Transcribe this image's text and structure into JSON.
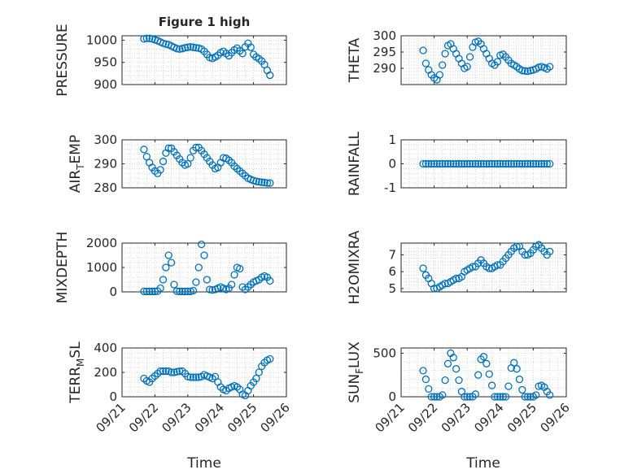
{
  "figure": {
    "title": "Figure 1 high",
    "xlabel": "Time",
    "x_ticks": [
      "09/21",
      "09/22",
      "09/23",
      "09/24",
      "09/25",
      "09/26"
    ],
    "marker_color": "#0072BD"
  },
  "chart_data": [
    {
      "type": "scatter",
      "name": "PRESSURE",
      "ylabel_main": "PRESSURE",
      "ylabel_sub": "",
      "ylabel_tail": "",
      "title": "Figure 1 high",
      "ylim": [
        900,
        1010
      ],
      "y_ticks": [
        900,
        950,
        1000
      ],
      "xlim": [
        "09/21",
        "09/26"
      ],
      "grid": "minor",
      "x": [
        "09/21 16:00",
        "09/21 18:00",
        "09/21 20:00",
        "09/21 22:00",
        "09/22 00:00",
        "09/22 02:00",
        "09/22 04:00",
        "09/22 06:00",
        "09/22 08:00",
        "09/22 10:00",
        "09/22 12:00",
        "09/22 14:00",
        "09/22 16:00",
        "09/22 18:00",
        "09/22 20:00",
        "09/22 22:00",
        "09/23 00:00",
        "09/23 02:00",
        "09/23 04:00",
        "09/23 06:00",
        "09/23 08:00",
        "09/23 10:00",
        "09/23 12:00",
        "09/23 14:00",
        "09/23 16:00",
        "09/23 18:00",
        "09/23 20:00",
        "09/23 22:00",
        "09/24 00:00",
        "09/24 02:00",
        "09/24 04:00",
        "09/24 06:00",
        "09/24 08:00",
        "09/24 10:00",
        "09/24 12:00",
        "09/24 14:00",
        "09/24 16:00",
        "09/24 18:00",
        "09/24 20:00",
        "09/24 22:00",
        "09/25 00:00",
        "09/25 02:00",
        "09/25 04:00",
        "09/25 06:00",
        "09/25 08:00",
        "09/25 10:00",
        "09/25 12:00"
      ],
      "y": [
        1003,
        1004,
        1004,
        1003,
        1001,
        999,
        996,
        993,
        991,
        990,
        987,
        984,
        981,
        980,
        981,
        983,
        984,
        985,
        984,
        983,
        982,
        980,
        975,
        968,
        961,
        959,
        962,
        966,
        972,
        975,
        970,
        965,
        972,
        978,
        982,
        976,
        970,
        985,
        993,
        984,
        968,
        962,
        958,
        953,
        945,
        932,
        921
      ]
    },
    {
      "type": "scatter",
      "name": "THETA",
      "ylabel_main": "THETA",
      "ylabel_sub": "",
      "ylabel_tail": "",
      "ylim": [
        285,
        300
      ],
      "y_ticks": [
        290,
        295,
        300
      ],
      "xlim": [
        "09/21",
        "09/26"
      ],
      "grid": "minor",
      "x": [
        "09/21 16:00",
        "09/21 18:00",
        "09/21 20:00",
        "09/21 22:00",
        "09/22 00:00",
        "09/22 02:00",
        "09/22 04:00",
        "09/22 06:00",
        "09/22 08:00",
        "09/22 10:00",
        "09/22 12:00",
        "09/22 14:00",
        "09/22 16:00",
        "09/22 18:00",
        "09/22 20:00",
        "09/22 22:00",
        "09/23 00:00",
        "09/23 02:00",
        "09/23 04:00",
        "09/23 06:00",
        "09/23 08:00",
        "09/23 10:00",
        "09/23 12:00",
        "09/23 14:00",
        "09/23 16:00",
        "09/23 18:00",
        "09/23 20:00",
        "09/23 22:00",
        "09/24 00:00",
        "09/24 02:00",
        "09/24 04:00",
        "09/24 06:00",
        "09/24 08:00",
        "09/24 10:00",
        "09/24 12:00",
        "09/24 14:00",
        "09/24 16:00",
        "09/24 18:00",
        "09/24 20:00",
        "09/24 22:00",
        "09/25 00:00",
        "09/25 02:00",
        "09/25 04:00",
        "09/25 06:00",
        "09/25 08:00",
        "09/25 10:00",
        "09/25 12:00"
      ],
      "y": [
        295.5,
        291.5,
        289.5,
        288,
        287,
        286.5,
        288,
        291,
        294.5,
        297,
        297.5,
        296,
        294.5,
        293,
        291.5,
        290,
        290.5,
        293.5,
        296.5,
        298,
        298.3,
        297.5,
        296,
        294.5,
        293,
        291.5,
        291,
        292,
        294,
        294.3,
        293.5,
        292.5,
        291.5,
        291,
        290.5,
        289.8,
        289.3,
        289.2,
        289.1,
        289.3,
        289.5,
        289.8,
        290.3,
        290.5,
        290.2,
        289.8,
        290.5
      ]
    },
    {
      "type": "scatter",
      "name": "AIR_TEMP",
      "ylabel_main": "AIR",
      "ylabel_sub": "T",
      "ylabel_tail": "EMP",
      "ylim": [
        280,
        300
      ],
      "y_ticks": [
        280,
        290,
        300
      ],
      "xlim": [
        "09/21",
        "09/26"
      ],
      "grid": "minor",
      "x": [
        "09/21 16:00",
        "09/21 18:00",
        "09/21 20:00",
        "09/21 22:00",
        "09/22 00:00",
        "09/22 02:00",
        "09/22 04:00",
        "09/22 06:00",
        "09/22 08:00",
        "09/22 10:00",
        "09/22 12:00",
        "09/22 14:00",
        "09/22 16:00",
        "09/22 18:00",
        "09/22 20:00",
        "09/22 22:00",
        "09/23 00:00",
        "09/23 02:00",
        "09/23 04:00",
        "09/23 06:00",
        "09/23 08:00",
        "09/23 10:00",
        "09/23 12:00",
        "09/23 14:00",
        "09/23 16:00",
        "09/23 18:00",
        "09/23 20:00",
        "09/23 22:00",
        "09/24 00:00",
        "09/24 02:00",
        "09/24 04:00",
        "09/24 06:00",
        "09/24 08:00",
        "09/24 10:00",
        "09/24 12:00",
        "09/24 14:00",
        "09/24 16:00",
        "09/24 18:00",
        "09/24 20:00",
        "09/24 22:00",
        "09/25 00:00",
        "09/25 02:00",
        "09/25 04:00",
        "09/25 06:00",
        "09/25 08:00",
        "09/25 10:00",
        "09/25 12:00"
      ],
      "y": [
        296,
        293,
        290.5,
        288.5,
        287,
        286,
        287.5,
        291,
        294.5,
        296.5,
        296.5,
        295,
        293.5,
        292,
        290.5,
        289.5,
        290,
        292.5,
        295.5,
        296.8,
        296.8,
        295.5,
        294,
        292.5,
        291,
        289.5,
        288,
        288.5,
        290.5,
        292.5,
        292.3,
        291.5,
        290.5,
        289,
        288,
        287,
        286,
        285,
        284,
        283.5,
        283,
        282.7,
        282.5,
        282.3,
        282.2,
        282,
        282
      ]
    },
    {
      "type": "scatter",
      "name": "RAINFALL",
      "ylabel_main": "RAINFALL",
      "ylabel_sub": "",
      "ylabel_tail": "",
      "ylim": [
        -1,
        1
      ],
      "y_ticks": [
        -1,
        0,
        1
      ],
      "xlim": [
        "09/21",
        "09/26"
      ],
      "grid": "minor",
      "x": [
        "09/21 16:00",
        "09/21 18:00",
        "09/21 20:00",
        "09/21 22:00",
        "09/22 00:00",
        "09/22 02:00",
        "09/22 04:00",
        "09/22 06:00",
        "09/22 08:00",
        "09/22 10:00",
        "09/22 12:00",
        "09/22 14:00",
        "09/22 16:00",
        "09/22 18:00",
        "09/22 20:00",
        "09/22 22:00",
        "09/23 00:00",
        "09/23 02:00",
        "09/23 04:00",
        "09/23 06:00",
        "09/23 08:00",
        "09/23 10:00",
        "09/23 12:00",
        "09/23 14:00",
        "09/23 16:00",
        "09/23 18:00",
        "09/23 20:00",
        "09/23 22:00",
        "09/24 00:00",
        "09/24 02:00",
        "09/24 04:00",
        "09/24 06:00",
        "09/24 08:00",
        "09/24 10:00",
        "09/24 12:00",
        "09/24 14:00",
        "09/24 16:00",
        "09/24 18:00",
        "09/24 20:00",
        "09/24 22:00",
        "09/25 00:00",
        "09/25 02:00",
        "09/25 04:00",
        "09/25 06:00",
        "09/25 08:00",
        "09/25 10:00",
        "09/25 12:00"
      ],
      "y": [
        0,
        0,
        0,
        0,
        0,
        0,
        0,
        0,
        0,
        0,
        0,
        0,
        0,
        0,
        0,
        0,
        0,
        0,
        0,
        0,
        0,
        0,
        0,
        0,
        0,
        0,
        0,
        0,
        0,
        0,
        0,
        0,
        0,
        0,
        0,
        0,
        0,
        0,
        0,
        0,
        0,
        0,
        0,
        0,
        0,
        0,
        0
      ]
    },
    {
      "type": "scatter",
      "name": "MIXDEPTH",
      "ylabel_main": "MIXDEPTH",
      "ylabel_sub": "",
      "ylabel_tail": "",
      "ylim": [
        0,
        2000
      ],
      "y_ticks": [
        0,
        1000,
        2000
      ],
      "xlim": [
        "09/21",
        "09/26"
      ],
      "grid": "minor",
      "x": [
        "09/21 16:00",
        "09/21 18:00",
        "09/21 20:00",
        "09/21 22:00",
        "09/22 00:00",
        "09/22 02:00",
        "09/22 04:00",
        "09/22 06:00",
        "09/22 08:00",
        "09/22 10:00",
        "09/22 12:00",
        "09/22 14:00",
        "09/22 16:00",
        "09/22 18:00",
        "09/22 20:00",
        "09/22 22:00",
        "09/23 00:00",
        "09/23 02:00",
        "09/23 04:00",
        "09/23 06:00",
        "09/23 08:00",
        "09/23 10:00",
        "09/23 12:00",
        "09/23 14:00",
        "09/23 16:00",
        "09/23 18:00",
        "09/23 20:00",
        "09/23 22:00",
        "09/24 00:00",
        "09/24 02:00",
        "09/24 04:00",
        "09/24 06:00",
        "09/24 08:00",
        "09/24 10:00",
        "09/24 12:00",
        "09/24 14:00",
        "09/24 16:00",
        "09/24 18:00",
        "09/24 20:00",
        "09/24 22:00",
        "09/25 00:00",
        "09/25 02:00",
        "09/25 04:00",
        "09/25 06:00",
        "09/25 08:00",
        "09/25 10:00",
        "09/25 12:00"
      ],
      "y": [
        20,
        20,
        20,
        20,
        20,
        30,
        150,
        500,
        1000,
        1500,
        1200,
        300,
        30,
        20,
        20,
        20,
        20,
        20,
        50,
        400,
        1000,
        1950,
        1500,
        500,
        100,
        80,
        100,
        150,
        200,
        150,
        100,
        150,
        300,
        700,
        1000,
        950,
        200,
        100,
        200,
        300,
        400,
        450,
        500,
        600,
        650,
        600,
        450
      ]
    },
    {
      "type": "scatter",
      "name": "H2OMIXRA",
      "ylabel_main": "H2OMIXRA",
      "ylabel_sub": "",
      "ylabel_tail": "",
      "ylim": [
        4.8,
        7.7
      ],
      "y_ticks": [
        5,
        6,
        7
      ],
      "xlim": [
        "09/21",
        "09/26"
      ],
      "grid": "minor",
      "x": [
        "09/21 16:00",
        "09/21 18:00",
        "09/21 20:00",
        "09/21 22:00",
        "09/22 00:00",
        "09/22 02:00",
        "09/22 04:00",
        "09/22 06:00",
        "09/22 08:00",
        "09/22 10:00",
        "09/22 12:00",
        "09/22 14:00",
        "09/22 16:00",
        "09/22 18:00",
        "09/22 20:00",
        "09/22 22:00",
        "09/23 00:00",
        "09/23 02:00",
        "09/23 04:00",
        "09/23 06:00",
        "09/23 08:00",
        "09/23 10:00",
        "09/23 12:00",
        "09/23 14:00",
        "09/23 16:00",
        "09/23 18:00",
        "09/23 20:00",
        "09/23 22:00",
        "09/24 00:00",
        "09/24 02:00",
        "09/24 04:00",
        "09/24 06:00",
        "09/24 08:00",
        "09/24 10:00",
        "09/24 12:00",
        "09/24 14:00",
        "09/24 16:00",
        "09/24 18:00",
        "09/24 20:00",
        "09/24 22:00",
        "09/25 00:00",
        "09/25 02:00",
        "09/25 04:00",
        "09/25 06:00",
        "09/25 08:00",
        "09/25 10:00",
        "09/25 12:00"
      ],
      "y": [
        6.2,
        5.8,
        5.6,
        5.3,
        5.0,
        5.0,
        5.1,
        5.2,
        5.3,
        5.3,
        5.4,
        5.5,
        5.6,
        5.6,
        5.7,
        6.0,
        6.1,
        6.2,
        6.3,
        6.3,
        6.5,
        6.7,
        6.5,
        6.3,
        6.2,
        6.2,
        6.3,
        6.4,
        6.4,
        6.6,
        6.8,
        7.0,
        7.2,
        7.4,
        7.5,
        7.5,
        7.2,
        7.0,
        7.0,
        7.1,
        7.3,
        7.5,
        7.6,
        7.4,
        7.2,
        7.0,
        7.2
      ]
    },
    {
      "type": "scatter",
      "name": "TERR_MSL",
      "ylabel_main": "TERR",
      "ylabel_sub": "M",
      "ylabel_tail": "SL",
      "ylim": [
        0,
        400
      ],
      "y_ticks": [
        0,
        200,
        400
      ],
      "xlim": [
        "09/21",
        "09/26"
      ],
      "grid": "minor",
      "x": [
        "09/21 16:00",
        "09/21 18:00",
        "09/21 20:00",
        "09/21 22:00",
        "09/22 00:00",
        "09/22 02:00",
        "09/22 04:00",
        "09/22 06:00",
        "09/22 08:00",
        "09/22 10:00",
        "09/22 12:00",
        "09/22 14:00",
        "09/22 16:00",
        "09/22 18:00",
        "09/22 20:00",
        "09/22 22:00",
        "09/23 00:00",
        "09/23 02:00",
        "09/23 04:00",
        "09/23 06:00",
        "09/23 08:00",
        "09/23 10:00",
        "09/23 12:00",
        "09/23 14:00",
        "09/23 16:00",
        "09/23 18:00",
        "09/23 20:00",
        "09/23 22:00",
        "09/24 00:00",
        "09/24 02:00",
        "09/24 04:00",
        "09/24 06:00",
        "09/24 08:00",
        "09/24 10:00",
        "09/24 12:00",
        "09/24 14:00",
        "09/24 16:00",
        "09/24 18:00",
        "09/24 20:00",
        "09/24 22:00",
        "09/25 00:00",
        "09/25 02:00",
        "09/25 04:00",
        "09/25 06:00",
        "09/25 08:00",
        "09/25 10:00",
        "09/25 12:00"
      ],
      "y": [
        150,
        130,
        120,
        150,
        170,
        190,
        210,
        210,
        210,
        210,
        200,
        200,
        205,
        210,
        210,
        190,
        165,
        160,
        160,
        160,
        160,
        165,
        180,
        170,
        160,
        150,
        165,
        120,
        80,
        60,
        50,
        70,
        80,
        90,
        80,
        60,
        20,
        10,
        50,
        90,
        120,
        150,
        200,
        250,
        280,
        300,
        310
      ]
    },
    {
      "type": "scatter",
      "name": "SUN_FLUX",
      "ylabel_main": "SUN",
      "ylabel_sub": "F",
      "ylabel_tail": "LUX",
      "ylim": [
        0,
        560
      ],
      "y_ticks": [
        0,
        500
      ],
      "xlim": [
        "09/21",
        "09/26"
      ],
      "grid": "minor",
      "x": [
        "09/21 16:00",
        "09/21 18:00",
        "09/21 20:00",
        "09/21 22:00",
        "09/22 00:00",
        "09/22 02:00",
        "09/22 04:00",
        "09/22 06:00",
        "09/22 08:00",
        "09/22 10:00",
        "09/22 12:00",
        "09/22 14:00",
        "09/22 16:00",
        "09/22 18:00",
        "09/22 20:00",
        "09/22 22:00",
        "09/23 00:00",
        "09/23 02:00",
        "09/23 04:00",
        "09/23 06:00",
        "09/23 08:00",
        "09/23 10:00",
        "09/23 12:00",
        "09/23 14:00",
        "09/23 16:00",
        "09/23 18:00",
        "09/23 20:00",
        "09/23 22:00",
        "09/24 00:00",
        "09/24 02:00",
        "09/24 04:00",
        "09/24 06:00",
        "09/24 08:00",
        "09/24 10:00",
        "09/24 12:00",
        "09/24 14:00",
        "09/24 16:00",
        "09/24 18:00",
        "09/24 20:00",
        "09/24 22:00",
        "09/25 00:00",
        "09/25 02:00",
        "09/25 04:00",
        "09/25 06:00",
        "09/25 08:00",
        "09/25 10:00",
        "09/25 12:00"
      ],
      "y": [
        300,
        200,
        90,
        0,
        0,
        0,
        0,
        20,
        190,
        380,
        500,
        450,
        320,
        190,
        60,
        0,
        0,
        0,
        0,
        30,
        250,
        430,
        460,
        380,
        260,
        130,
        0,
        0,
        0,
        0,
        0,
        120,
        330,
        390,
        320,
        200,
        80,
        0,
        0,
        0,
        0,
        20,
        120,
        130,
        110,
        60,
        20
      ]
    }
  ]
}
